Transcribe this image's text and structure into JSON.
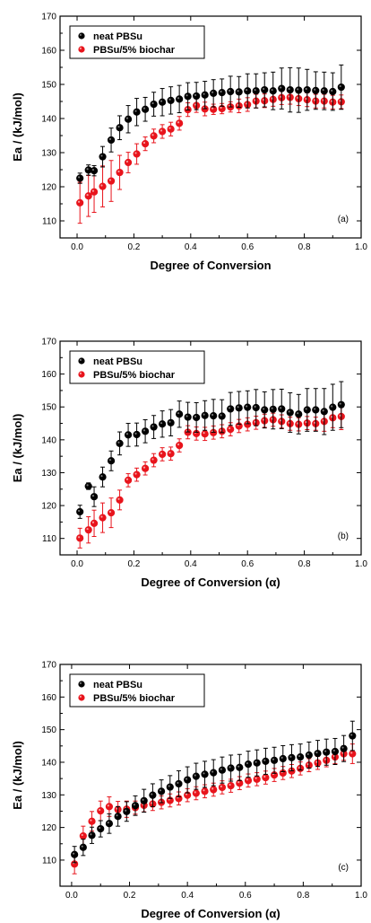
{
  "chart_data": [
    {
      "type": "scatter",
      "panel_label": "(a)",
      "xlabel": "Degree of Conversion",
      "ylabel": "Ea / (kJ/mol)",
      "xlim": [
        -0.06,
        1.0
      ],
      "ylim": [
        105,
        170
      ],
      "xticks": [
        "0.0",
        "0.2",
        "0.4",
        "0.6",
        "0.8",
        "1.0"
      ],
      "yticks": [
        "110",
        "120",
        "130",
        "140",
        "150",
        "160",
        "170"
      ],
      "legend_position": "top-left",
      "series": [
        {
          "name": "neat PBSu",
          "color": "#000000",
          "x": [
            0.01,
            0.04,
            0.06,
            0.09,
            0.12,
            0.15,
            0.18,
            0.21,
            0.24,
            0.27,
            0.3,
            0.33,
            0.36,
            0.39,
            0.42,
            0.45,
            0.48,
            0.51,
            0.54,
            0.57,
            0.6,
            0.63,
            0.66,
            0.69,
            0.72,
            0.75,
            0.78,
            0.81,
            0.84,
            0.87,
            0.9,
            0.93
          ],
          "y": [
            122.5,
            124.9,
            124.7,
            128.8,
            133.7,
            137.3,
            139.8,
            141.9,
            142.7,
            144.2,
            144.8,
            145.3,
            145.7,
            146.5,
            146.6,
            146.9,
            147.4,
            147.6,
            147.9,
            147.8,
            148.1,
            148.1,
            148.4,
            148.1,
            148.8,
            148.4,
            148.3,
            148.4,
            148.2,
            148.1,
            147.9,
            149.2
          ],
          "err": [
            1.5,
            1.5,
            1.5,
            3,
            3.5,
            3.5,
            4,
            4,
            3.5,
            3.5,
            4,
            4,
            4,
            4,
            4,
            4,
            4,
            4,
            4.5,
            4.5,
            5,
            5,
            5,
            5.5,
            6,
            6.5,
            6.5,
            6,
            5.5,
            5.5,
            5.5,
            6.5
          ]
        },
        {
          "name": "PBSu/5% biochar",
          "color": "#e8141c",
          "x": [
            0.01,
            0.04,
            0.06,
            0.09,
            0.12,
            0.15,
            0.18,
            0.21,
            0.24,
            0.27,
            0.3,
            0.33,
            0.36,
            0.39,
            0.42,
            0.45,
            0.48,
            0.51,
            0.54,
            0.57,
            0.6,
            0.63,
            0.66,
            0.69,
            0.72,
            0.75,
            0.78,
            0.81,
            0.84,
            0.87,
            0.9,
            0.93
          ],
          "y": [
            115.3,
            117.3,
            118.5,
            120.1,
            121.7,
            124.2,
            127.1,
            129.6,
            132.6,
            134.9,
            136.2,
            136.9,
            138.6,
            142.6,
            143.8,
            142.8,
            142.7,
            142.9,
            143.4,
            143.7,
            144.1,
            145.1,
            145.2,
            145.6,
            146.1,
            146.2,
            145.8,
            145.5,
            145.1,
            145.1,
            144.8,
            144.9
          ],
          "err": [
            6,
            6,
            6,
            6,
            6,
            5,
            3,
            3,
            2,
            2,
            2,
            2,
            2,
            2,
            2,
            2,
            1.5,
            1.5,
            1.5,
            2,
            2,
            2,
            2,
            2,
            2,
            2,
            2,
            2,
            2,
            2,
            2,
            2
          ]
        }
      ]
    },
    {
      "type": "scatter",
      "panel_label": "(b)",
      "xlabel": "Degree of Conversion (α)",
      "ylabel": "Ea / (kJ/mol)",
      "xlim": [
        -0.06,
        1.0
      ],
      "ylim": [
        105,
        170
      ],
      "xticks": [
        "0.0",
        "0.2",
        "0.4",
        "0.6",
        "0.8",
        "1.0"
      ],
      "yticks": [
        "110",
        "120",
        "130",
        "140",
        "150",
        "160",
        "170"
      ],
      "legend_position": "top-left",
      "series": [
        {
          "name": "neat PBSu",
          "color": "#000000",
          "x": [
            0.01,
            0.04,
            0.06,
            0.09,
            0.12,
            0.15,
            0.18,
            0.21,
            0.24,
            0.27,
            0.3,
            0.33,
            0.36,
            0.39,
            0.42,
            0.45,
            0.48,
            0.51,
            0.54,
            0.57,
            0.6,
            0.63,
            0.66,
            0.69,
            0.72,
            0.75,
            0.78,
            0.81,
            0.84,
            0.87,
            0.9,
            0.93
          ],
          "y": [
            118.1,
            125.9,
            122.7,
            128.7,
            133.6,
            138.9,
            141.5,
            141.6,
            142.6,
            143.9,
            144.8,
            145.2,
            147.8,
            146.9,
            146.8,
            147.4,
            147.3,
            147.2,
            149.4,
            149.7,
            149.9,
            149.8,
            149.1,
            149.3,
            149.4,
            148.3,
            147.8,
            149.1,
            149.1,
            148.6,
            149.9,
            150.7
          ],
          "err": [
            2,
            1,
            3,
            3,
            3,
            3.5,
            3.5,
            3.5,
            3.5,
            3.5,
            4,
            4,
            4,
            4.5,
            4.5,
            4.5,
            5,
            5,
            5,
            5,
            5,
            5.5,
            5.5,
            6,
            6,
            6,
            6,
            6.5,
            6.5,
            7,
            7,
            7
          ]
        },
        {
          "name": "PBSu/5% biochar",
          "color": "#e8141c",
          "x": [
            0.01,
            0.04,
            0.06,
            0.09,
            0.12,
            0.15,
            0.18,
            0.21,
            0.24,
            0.27,
            0.3,
            0.33,
            0.36,
            0.39,
            0.42,
            0.45,
            0.48,
            0.51,
            0.54,
            0.57,
            0.6,
            0.63,
            0.66,
            0.69,
            0.72,
            0.75,
            0.78,
            0.81,
            0.84,
            0.87,
            0.9,
            0.93
          ],
          "y": [
            110.1,
            112.6,
            114.6,
            116.3,
            117.8,
            121.7,
            127.7,
            129.4,
            131.3,
            133.8,
            135.6,
            135.8,
            138.3,
            142.3,
            141.9,
            141.8,
            142.2,
            142.6,
            143.2,
            144.2,
            144.7,
            145.2,
            145.8,
            146.1,
            145.6,
            144.9,
            144.7,
            145.1,
            144.9,
            145.6,
            146.7,
            147.1
          ],
          "err": [
            3,
            4,
            4,
            4.5,
            4.5,
            3,
            2,
            2,
            2,
            2,
            2,
            2,
            2,
            2,
            2,
            2,
            2,
            2,
            2,
            2,
            2,
            2,
            2,
            2,
            2,
            2,
            2,
            2,
            2,
            3,
            3,
            4
          ]
        }
      ]
    },
    {
      "type": "scatter",
      "panel_label": "(c)",
      "xlabel": "Degree of Conversion (α)",
      "ylabel": "Ea / (kJ/mol)",
      "xlim": [
        -0.04,
        1.0
      ],
      "ylim": [
        102,
        170
      ],
      "xticks": [
        "0.0",
        "0.2",
        "0.4",
        "0.6",
        "0.8",
        "1.0"
      ],
      "yticks": [
        "110",
        "120",
        "130",
        "140",
        "150",
        "160",
        "170"
      ],
      "legend_position": "top-left",
      "series": [
        {
          "name": "neat PBSu",
          "color": "#000000",
          "x": [
            0.01,
            0.04,
            0.07,
            0.1,
            0.13,
            0.16,
            0.19,
            0.22,
            0.25,
            0.28,
            0.31,
            0.34,
            0.37,
            0.4,
            0.43,
            0.46,
            0.49,
            0.52,
            0.55,
            0.58,
            0.61,
            0.64,
            0.67,
            0.7,
            0.73,
            0.76,
            0.79,
            0.82,
            0.85,
            0.88,
            0.91,
            0.94,
            0.97
          ],
          "y": [
            111.7,
            113.9,
            117.6,
            119.6,
            121.2,
            123.4,
            124.9,
            126.7,
            128.2,
            129.9,
            131.1,
            132.4,
            133.4,
            134.6,
            135.7,
            136.3,
            136.8,
            137.6,
            138.2,
            138.4,
            139.4,
            139.8,
            140.3,
            140.6,
            141.1,
            141.4,
            141.6,
            142.2,
            142.7,
            143.1,
            143.3,
            144.2,
            148.1
          ],
          "err": [
            2.5,
            2.5,
            2.5,
            2.5,
            3,
            3,
            3,
            3,
            3.5,
            3.5,
            3.5,
            3.5,
            4,
            4,
            4,
            4,
            4,
            4,
            4,
            4,
            4,
            4,
            4,
            4,
            4,
            4,
            4,
            4,
            4,
            4,
            4,
            4,
            4.5
          ]
        },
        {
          "name": "PBSu/5% biochar",
          "color": "#e8141c",
          "x": [
            0.01,
            0.04,
            0.07,
            0.1,
            0.13,
            0.16,
            0.19,
            0.22,
            0.25,
            0.28,
            0.31,
            0.34,
            0.37,
            0.4,
            0.43,
            0.46,
            0.49,
            0.52,
            0.55,
            0.58,
            0.61,
            0.64,
            0.67,
            0.7,
            0.73,
            0.76,
            0.79,
            0.82,
            0.85,
            0.88,
            0.91,
            0.94,
            0.97
          ],
          "y": [
            108.8,
            117.4,
            121.9,
            125.1,
            126.4,
            125.5,
            125.6,
            126.1,
            126.8,
            127.2,
            127.7,
            128.3,
            128.9,
            129.9,
            130.5,
            131.1,
            131.6,
            132.3,
            132.8,
            133.6,
            134.4,
            134.8,
            135.3,
            136.1,
            136.7,
            137.3,
            138.1,
            139.1,
            139.8,
            140.6,
            141.6,
            142.6,
            142.6
          ],
          "err": [
            3,
            3,
            3,
            3,
            3,
            2.5,
            2.5,
            2,
            2,
            2,
            2,
            2,
            2,
            2,
            2,
            2,
            2,
            2,
            2,
            2,
            2,
            2,
            2,
            2,
            2,
            2,
            2,
            2,
            2,
            2,
            2,
            2,
            3
          ]
        }
      ]
    }
  ]
}
